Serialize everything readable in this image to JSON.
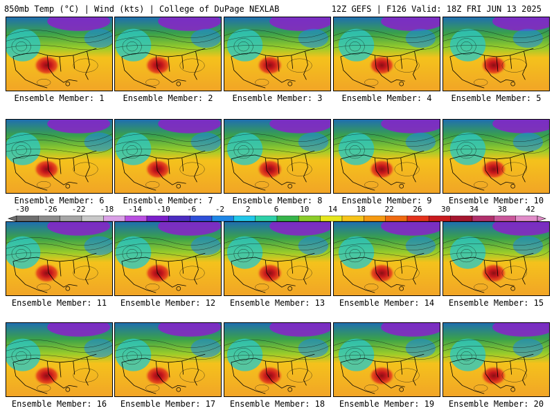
{
  "header": {
    "title_left": "850mb Temp (°C) | Wind (kts) | College of DuPage NEXLAB",
    "title_right": "12Z GEFS | F126 Valid: 18Z FRI JUN 13 2025"
  },
  "members": [
    {
      "label": "Ensemble Member: 1"
    },
    {
      "label": "Ensemble Member: 2"
    },
    {
      "label": "Ensemble Member: 3"
    },
    {
      "label": "Ensemble Member: 4"
    },
    {
      "label": "Ensemble Member: 5"
    },
    {
      "label": "Ensemble Member: 6"
    },
    {
      "label": "Ensemble Member: 7"
    },
    {
      "label": "Ensemble Member: 8"
    },
    {
      "label": "Ensemble Member: 9"
    },
    {
      "label": "Ensemble Member: 10"
    },
    {
      "label": "Ensemble Member: 11"
    },
    {
      "label": "Ensemble Member: 12"
    },
    {
      "label": "Ensemble Member: 13"
    },
    {
      "label": "Ensemble Member: 14"
    },
    {
      "label": "Ensemble Member: 15"
    },
    {
      "label": "Ensemble Member: 16"
    },
    {
      "label": "Ensemble Member: 17"
    },
    {
      "label": "Ensemble Member: 18"
    },
    {
      "label": "Ensemble Member: 19"
    },
    {
      "label": "Ensemble Member: 20"
    }
  ],
  "colorbar": {
    "ticks": [
      "-30",
      "-26",
      "-22",
      "-18",
      "-14",
      "-10",
      "-6",
      "-2",
      "2",
      "6",
      "10",
      "14",
      "18",
      "22",
      "26",
      "30",
      "34",
      "38",
      "42"
    ],
    "colors": [
      "#6e6e6e",
      "#8c8c8c",
      "#a6a6a6",
      "#c8c8c8",
      "#d9a0e6",
      "#b84fe0",
      "#7a1fc9",
      "#4b2cc0",
      "#2f4fd8",
      "#1e86e6",
      "#22c6e8",
      "#2ed0a8",
      "#36b44a",
      "#8ccc2a",
      "#e6e61e",
      "#f6c31a",
      "#f59a12",
      "#ef6a10",
      "#e3321c",
      "#c81a1e",
      "#a5162f",
      "#b0306b",
      "#c9579a",
      "#e08cc8"
    ]
  },
  "map_colors": {
    "ocean_warm": "#f2a526",
    "land_hot": "#c4161c",
    "cold_north": "#8a22c8",
    "mid_green": "#3aa14b",
    "cyan_west": "#2ec7c1"
  }
}
